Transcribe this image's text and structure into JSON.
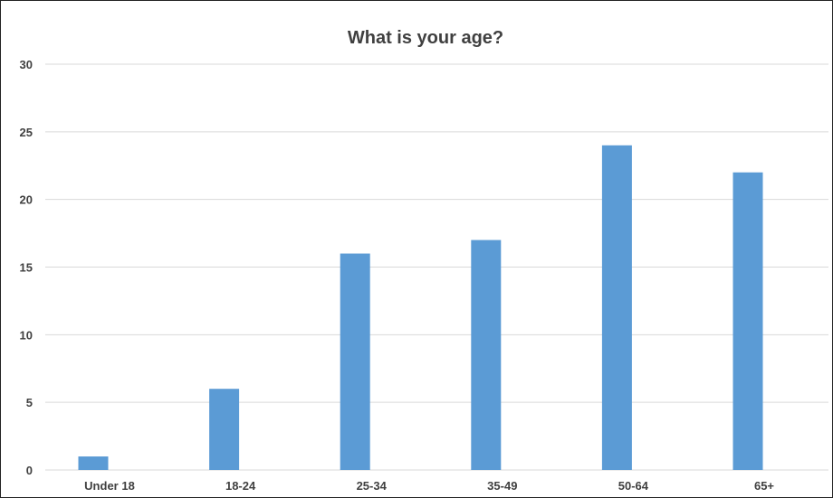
{
  "chart_data": {
    "type": "bar",
    "title": "What is your age?",
    "xlabel": "",
    "ylabel": "",
    "categories": [
      "Under 18",
      "18-24",
      "25-34",
      "35-49",
      "50-64",
      "65+"
    ],
    "values": [
      1,
      6,
      16,
      17,
      24,
      22
    ],
    "ylim": [
      0,
      30
    ],
    "yticks": [
      0,
      5,
      10,
      15,
      20,
      25,
      30
    ],
    "grid": true,
    "legend": "none",
    "bar_color": "#5b9bd5",
    "grid_color": "#d9d9d9",
    "text_color": "#404040"
  }
}
